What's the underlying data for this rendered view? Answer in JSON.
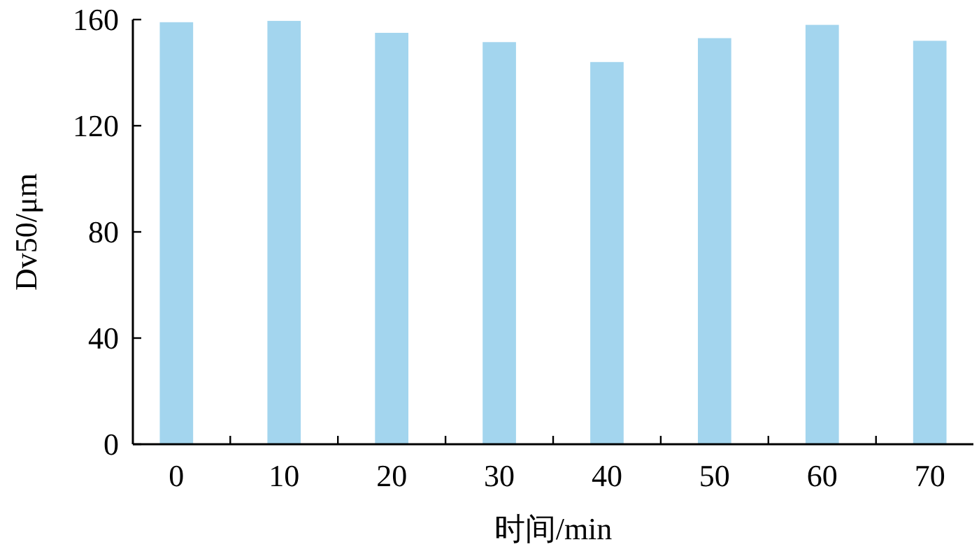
{
  "chart_data": {
    "type": "bar",
    "xlabel": "时间/min",
    "ylabel": "Dv50/μm",
    "categories": [
      "0",
      "10",
      "20",
      "30",
      "40",
      "50",
      "60",
      "70"
    ],
    "values": [
      159,
      159.5,
      155,
      151.5,
      144,
      153,
      158,
      152
    ],
    "color": "#a3d5ee",
    "ylim": [
      0,
      160
    ],
    "yticks": [
      0,
      40,
      80,
      120,
      160
    ],
    "grid": false
  }
}
